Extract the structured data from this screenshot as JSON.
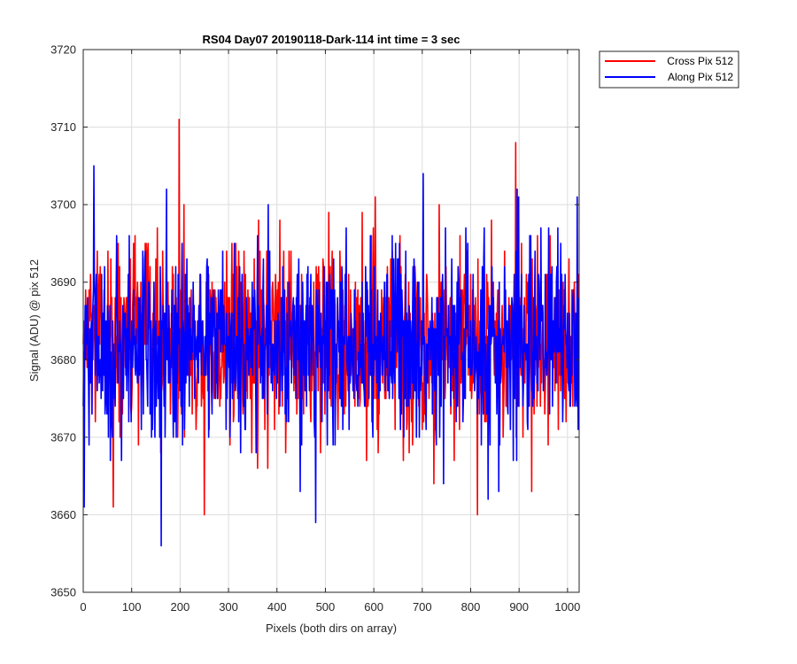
{
  "chart_data": {
    "type": "line",
    "title": "RS04 Day07 20190118-Dark-114 int time = 3 sec",
    "xlabel": "Pixels (both dirs on array)",
    "ylabel": "Signal (ADU) @ pix 512",
    "xlim": [
      0,
      1024
    ],
    "ylim": [
      3650,
      3720
    ],
    "xticks": [
      0,
      100,
      200,
      300,
      400,
      500,
      600,
      700,
      800,
      900,
      1000
    ],
    "yticks": [
      3650,
      3660,
      3670,
      3680,
      3690,
      3700,
      3710,
      3720
    ],
    "grid": true,
    "legend_position": "outside-top-right",
    "series": [
      {
        "name": "Cross Pix 512",
        "color": "#ff0000",
        "noise_model": "approx. 3682 ± 6 ADU random noise, one sample per pixel 0-1023",
        "highlights": [
          {
            "x": 198,
            "y": 3711
          },
          {
            "x": 893,
            "y": 3708
          },
          {
            "x": 250,
            "y": 3660
          },
          {
            "x": 814,
            "y": 3660
          },
          {
            "x": 62,
            "y": 3661
          }
        ]
      },
      {
        "name": "Along Pix 512",
        "color": "#0000ff",
        "noise_model": "approx. 3682 ± 6 ADU random noise, one sample per pixel 0-1023",
        "highlights": [
          {
            "x": 22,
            "y": 3705
          },
          {
            "x": 702,
            "y": 3704
          },
          {
            "x": 161,
            "y": 3656
          },
          {
            "x": 480,
            "y": 3659
          },
          {
            "x": 2,
            "y": 3661
          },
          {
            "x": 1020,
            "y": 3701
          }
        ]
      }
    ]
  }
}
